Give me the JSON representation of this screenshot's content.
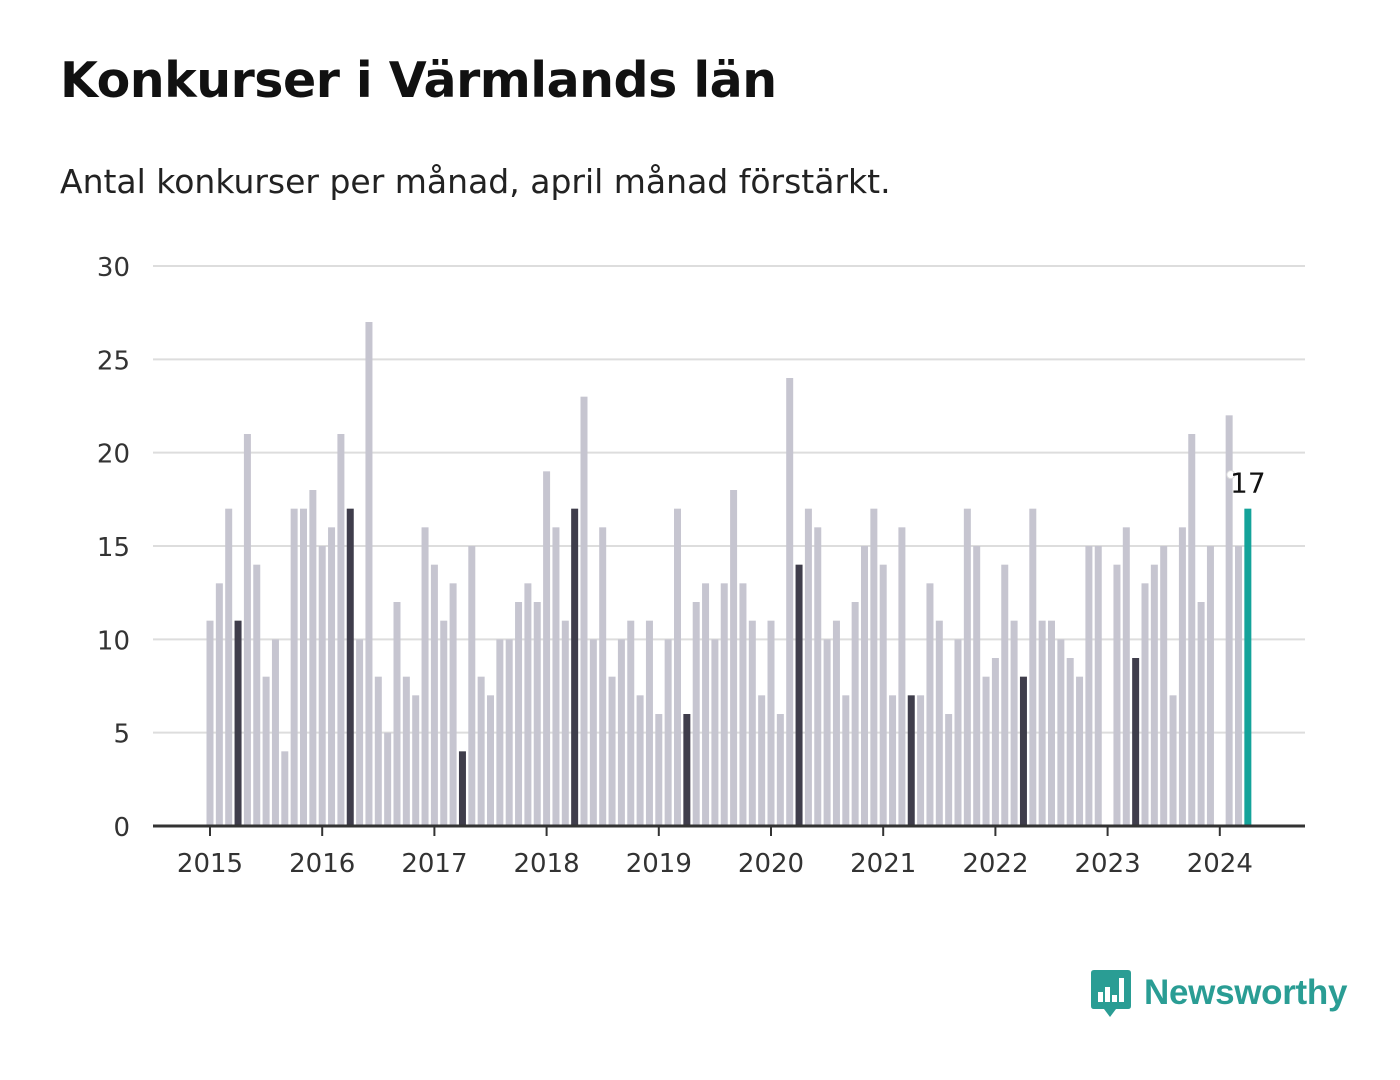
{
  "title": "Konkurser i Värmlands län",
  "subtitle": "Antal konkurser per månad, april månad förstärkt.",
  "brand": {
    "name": "Newsworthy"
  },
  "colors": {
    "regular_bar": "#c6c5d0",
    "april_bar": "#3f3d4b",
    "latest_bar": "#14a39a",
    "grid": "#dddddd",
    "axis": "#333333",
    "brand": "#2a9d94"
  },
  "chart_data": {
    "type": "bar",
    "start": "2015-01",
    "highlight_month": "April",
    "ylim": [
      0,
      30
    ],
    "yticks": [
      "0",
      "5",
      "10",
      "15",
      "20",
      "25",
      "30"
    ],
    "xticks": [
      "2015",
      "2016",
      "2017",
      "2018",
      "2019",
      "2020",
      "2021",
      "2022",
      "2023",
      "2024"
    ],
    "values": [
      11,
      13,
      17,
      11,
      21,
      14,
      8,
      10,
      4,
      17,
      17,
      18,
      15,
      16,
      21,
      17,
      10,
      27,
      8,
      5,
      12,
      8,
      7,
      16,
      14,
      11,
      13,
      4,
      15,
      8,
      7,
      10,
      10,
      12,
      13,
      12,
      19,
      16,
      11,
      17,
      23,
      10,
      16,
      8,
      10,
      11,
      7,
      11,
      6,
      10,
      17,
      6,
      12,
      13,
      10,
      13,
      18,
      13,
      11,
      7,
      11,
      6,
      24,
      14,
      17,
      16,
      10,
      11,
      7,
      12,
      15,
      17,
      14,
      7,
      16,
      7,
      7,
      13,
      11,
      6,
      10,
      17,
      15,
      8,
      9,
      14,
      11,
      8,
      17,
      11,
      11,
      10,
      9,
      8,
      15,
      15,
      0,
      14,
      16,
      9,
      13,
      14,
      15,
      7,
      16,
      21,
      12,
      15,
      0,
      22,
      15,
      17
    ],
    "annotation": {
      "label": "17"
    }
  }
}
